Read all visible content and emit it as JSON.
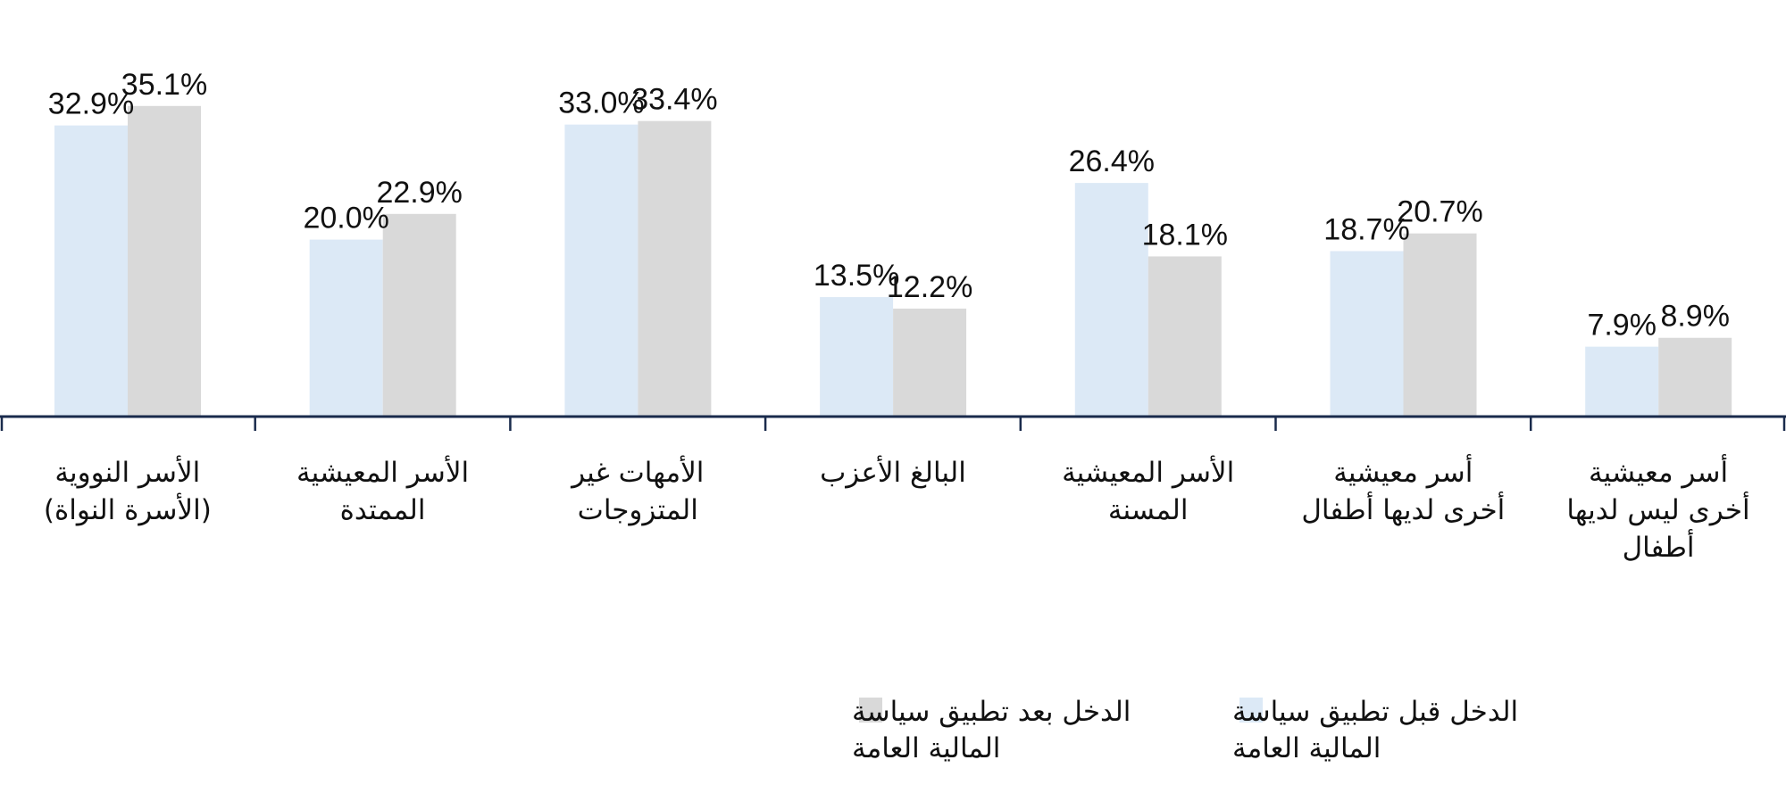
{
  "chart_data": {
    "type": "bar",
    "title": "",
    "xlabel": "",
    "ylabel": "",
    "ylim": [
      0,
      40
    ],
    "grid": false,
    "legend_position": "bottom",
    "categories": [
      [
        "الأسر النووية",
        "(الأسرة النواة)"
      ],
      [
        "الأسر المعيشية",
        "الممتدة"
      ],
      [
        "الأمهات غير",
        "المتزوجات"
      ],
      [
        "البالغ الأعزب"
      ],
      [
        "الأسر المعيشية",
        "المسنة"
      ],
      [
        "أسر معيشية",
        "أخرى لديها أطفال"
      ],
      [
        "أسر معيشية",
        "أخرى ليس لديها",
        "أطفال"
      ]
    ],
    "series": [
      {
        "name": [
          "الدخل قبل تطبيق سياسة",
          "المالية العامة"
        ],
        "color": "#dce9f6",
        "values": [
          32.9,
          20.0,
          33.0,
          13.5,
          26.4,
          18.7,
          7.9
        ],
        "labels": [
          "32.9%",
          "20.0%",
          "33.0%",
          "13.5%",
          "26.4%",
          "18.7%",
          "7.9%"
        ]
      },
      {
        "name": [
          "الدخل بعد تطبيق سياسة",
          "المالية العامة"
        ],
        "color": "#d9d9d9",
        "values": [
          35.1,
          22.9,
          33.4,
          12.2,
          18.1,
          20.7,
          8.9
        ],
        "labels": [
          "35.1%",
          "22.9%",
          "33.4%",
          "12.2%",
          "18.1%",
          "20.7%",
          "8.9%"
        ]
      }
    ],
    "axis_color": "#1a2b4c"
  }
}
